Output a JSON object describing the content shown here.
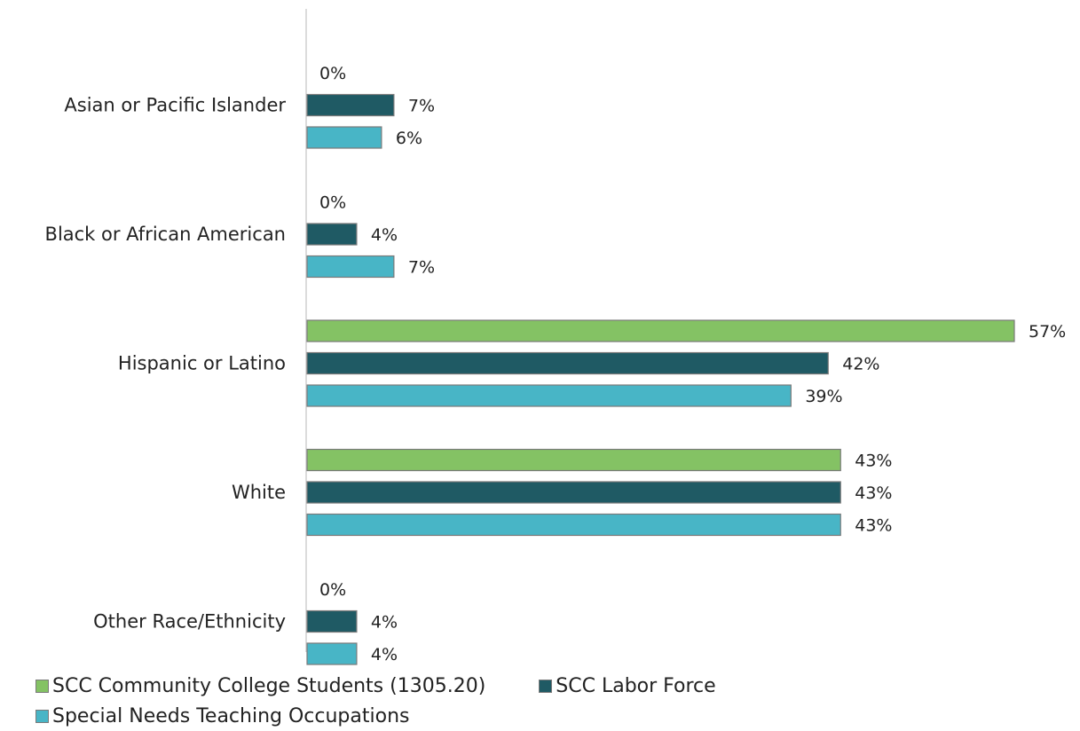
{
  "chart_data": {
    "type": "bar",
    "orientation": "horizontal",
    "categories": [
      "Asian or Pacific Islander",
      "Black or African American",
      "Hispanic or Latino",
      "White",
      "Other Race/Ethnicity"
    ],
    "series": [
      {
        "name": "SCC Community College Students (1305.20)",
        "color": "#84c264",
        "values": [
          0,
          0,
          57,
          43,
          0
        ],
        "labels": [
          "0%",
          "0%",
          "57%",
          "43%",
          "0%"
        ]
      },
      {
        "name": "SCC Labor Force",
        "color": "#1f5a64",
        "values": [
          7,
          4,
          42,
          43,
          4
        ],
        "labels": [
          "7%",
          "4%",
          "42%",
          "43%",
          "4%"
        ]
      },
      {
        "name": "Special Needs Teaching Occupations",
        "color": "#48b5c6",
        "values": [
          6,
          7,
          39,
          43,
          4
        ],
        "labels": [
          "6%",
          "7%",
          "39%",
          "43%",
          "4%"
        ]
      }
    ],
    "xlim": [
      0,
      57
    ],
    "grid": false,
    "legend_position": "bottom-left"
  }
}
